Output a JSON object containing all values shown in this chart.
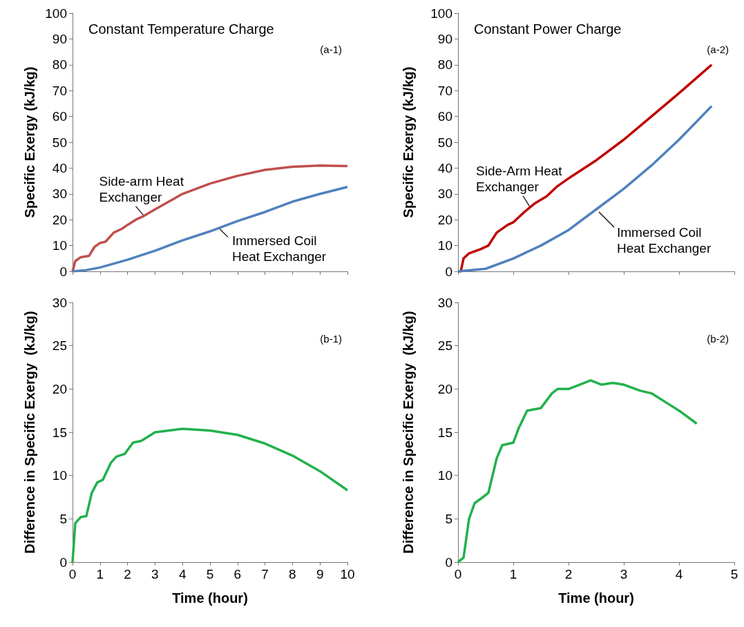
{
  "chart_data": [
    {
      "type": "line",
      "title": "Constant Temperature Charge",
      "ylabel": "Specific Exergy (kJ/kg)",
      "annotations": [
        "(a-1)",
        {
          "text": "Side-arm Heat Exchanger",
          "x": 2.6,
          "y": 21.5
        },
        {
          "text": "Immersed Coil Heat Exchanger",
          "x": 5.3,
          "y": 17
        }
      ],
      "xlim": [
        0,
        10
      ],
      "xticks": [
        0,
        1,
        2,
        3,
        4,
        5,
        6,
        7,
        8,
        9,
        10
      ],
      "ylim": [
        0,
        100
      ],
      "yticks": [
        0,
        10,
        20,
        30,
        40,
        50,
        60,
        70,
        80,
        90,
        100
      ],
      "tick_labels": "y",
      "grid": false,
      "series": [
        {
          "color": "#c0504d",
          "x": [
            0,
            0.1,
            0.3,
            0.6,
            0.8,
            1,
            1.2,
            1.5,
            1.8,
            2,
            2.3,
            2.6,
            3,
            3.5,
            4,
            5,
            6,
            7,
            8,
            9,
            10
          ],
          "values": [
            0,
            4,
            5.5,
            6,
            9.5,
            11,
            11.5,
            15,
            16.5,
            18,
            20,
            21.5,
            24,
            27,
            30,
            34,
            37,
            39.3,
            40.5,
            41,
            40.8
          ]
        },
        {
          "color": "#4f81bd",
          "x": [
            0,
            0.5,
            1,
            2,
            3,
            4,
            5,
            6,
            7,
            8,
            9,
            10
          ],
          "values": [
            0,
            0.5,
            1.5,
            4.5,
            8,
            12,
            15.5,
            19.5,
            23,
            27,
            30,
            32.7
          ]
        }
      ]
    },
    {
      "type": "line",
      "title": "Constant Power Charge",
      "ylabel": "Specific Exergy (kJ/kg)",
      "annotations": [
        "(a-2)",
        {
          "text": "Side-Arm Heat Exchanger",
          "x": 1.3,
          "y": 25
        },
        {
          "text": "Immersed Coil Heat Exchanger",
          "x": 2.55,
          "y": 23
        }
      ],
      "xlim": [
        0,
        5
      ],
      "xticks": [
        0,
        1,
        2,
        3,
        4,
        5
      ],
      "ylim": [
        0,
        100
      ],
      "yticks": [
        0,
        10,
        20,
        30,
        40,
        50,
        60,
        70,
        80,
        90,
        100
      ],
      "tick_labels": "y",
      "grid": false,
      "series": [
        {
          "color": "#c00000",
          "x": [
            0,
            0.05,
            0.1,
            0.2,
            0.4,
            0.55,
            0.7,
            0.9,
            1,
            1.2,
            1.4,
            1.6,
            1.8,
            2,
            2.5,
            3,
            3.5,
            4,
            4.59
          ],
          "values": [
            0,
            0,
            5,
            7,
            8.5,
            10,
            15,
            18,
            19,
            23,
            26.5,
            29,
            33,
            36,
            43,
            51,
            60,
            69,
            80
          ]
        },
        {
          "color": "#4f81bd",
          "x": [
            0,
            0.5,
            1,
            1.5,
            2,
            2.5,
            3,
            3.5,
            4,
            4.59
          ],
          "values": [
            0,
            1,
            5,
            10,
            16,
            24,
            32,
            41,
            51,
            64
          ]
        }
      ]
    },
    {
      "type": "line",
      "xlabel": "Time (hour)",
      "ylabel": "Difference in Specific Exergy  (kJ/kg)",
      "annotations": [
        "(b-1)"
      ],
      "xlim": [
        0,
        10
      ],
      "xticks": [
        0,
        1,
        2,
        3,
        4,
        5,
        6,
        7,
        8,
        9,
        10
      ],
      "ylim": [
        0,
        30
      ],
      "yticks": [
        0,
        5,
        10,
        15,
        20,
        25,
        30
      ],
      "grid": false,
      "series": [
        {
          "color": "#22b14c",
          "x": [
            0,
            0.1,
            0.3,
            0.5,
            0.7,
            0.9,
            1.1,
            1.4,
            1.6,
            1.9,
            2.2,
            2.5,
            3,
            3.5,
            4,
            5,
            6,
            7,
            8,
            9,
            10
          ],
          "values": [
            0,
            4.5,
            5.2,
            5.3,
            8,
            9.2,
            9.5,
            11.5,
            12.2,
            12.5,
            13.8,
            14,
            15,
            15.2,
            15.4,
            15.2,
            14.7,
            13.7,
            12.3,
            10.5,
            8.3
          ]
        }
      ]
    },
    {
      "type": "line",
      "xlabel": "Time (hour)",
      "ylabel": "Difference in Specific Exergy  (kJ/kg)",
      "annotations": [
        "(b-2)"
      ],
      "xlim": [
        0,
        5
      ],
      "xticks": [
        0,
        1,
        2,
        3,
        4,
        5
      ],
      "ylim": [
        0,
        30
      ],
      "yticks": [
        0,
        5,
        10,
        15,
        20,
        25,
        30
      ],
      "grid": false,
      "series": [
        {
          "color": "#22b14c",
          "x": [
            0,
            0.1,
            0.2,
            0.3,
            0.45,
            0.55,
            0.7,
            0.8,
            1,
            1.1,
            1.25,
            1.5,
            1.7,
            1.8,
            2,
            2.2,
            2.4,
            2.6,
            2.8,
            3,
            3.3,
            3.5,
            3.8,
            4,
            4.32
          ],
          "values": [
            0,
            0.5,
            5,
            6.8,
            7.5,
            8,
            12,
            13.5,
            13.8,
            15.5,
            17.5,
            17.8,
            19.5,
            20,
            20,
            20.5,
            21,
            20.5,
            20.7,
            20.5,
            19.8,
            19.5,
            18.3,
            17.5,
            16
          ]
        }
      ]
    }
  ]
}
